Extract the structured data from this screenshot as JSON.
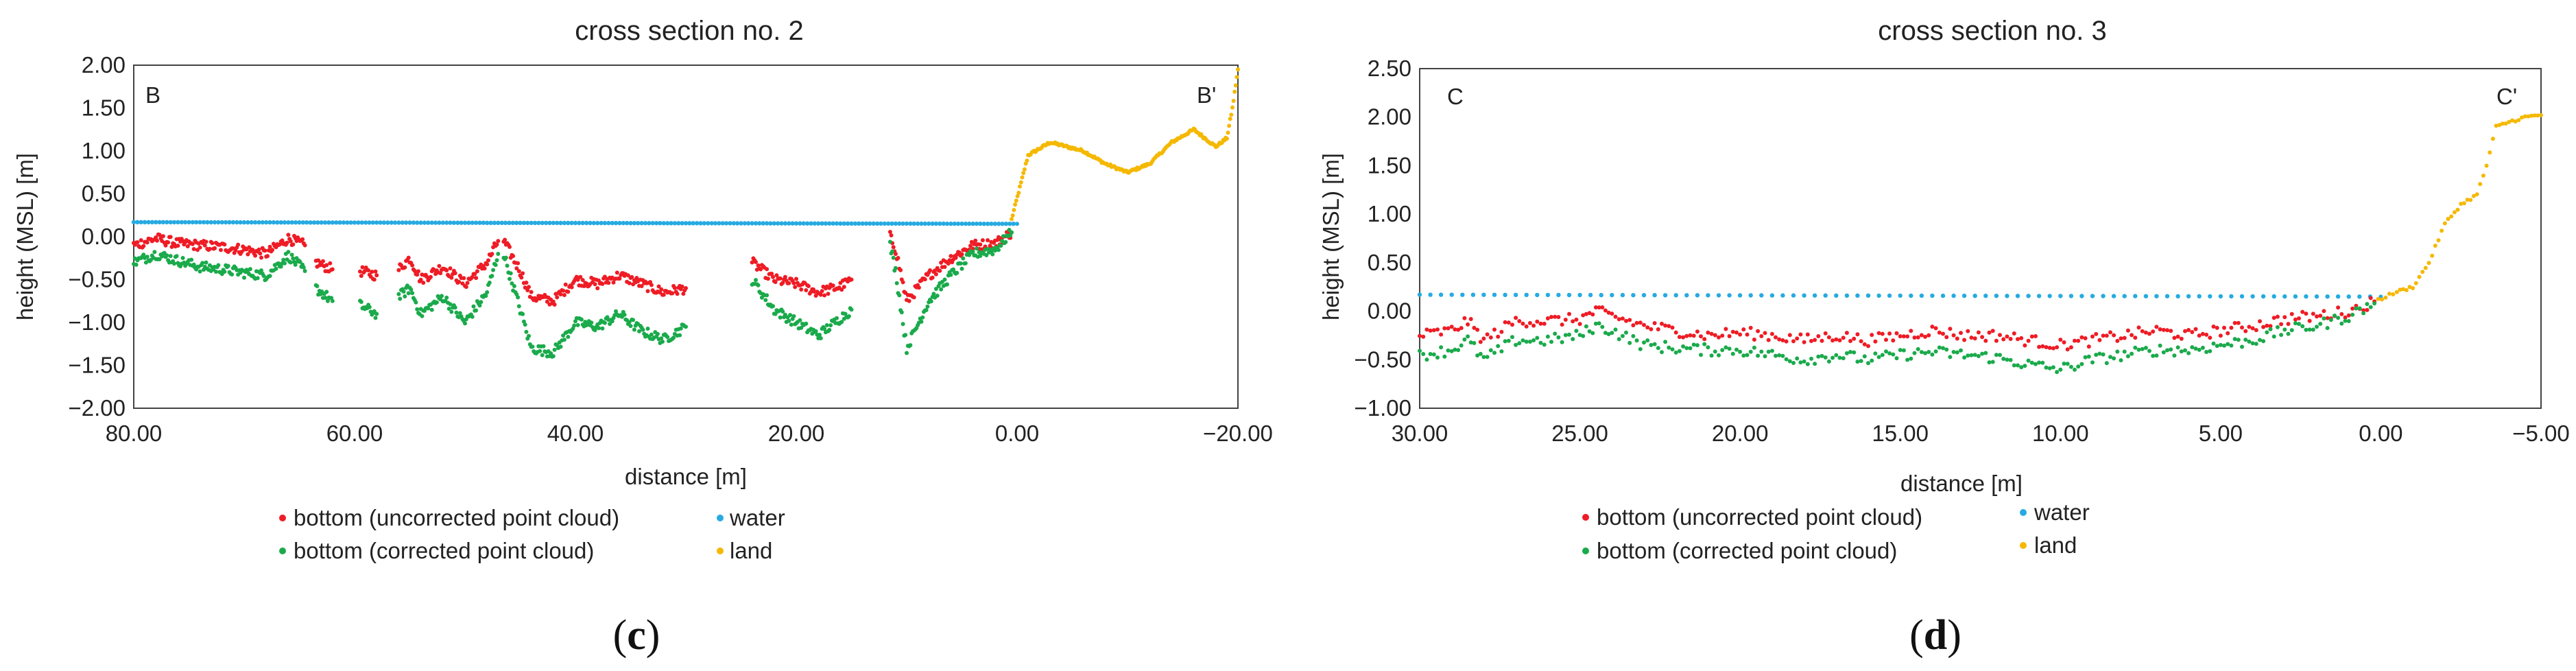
{
  "colors": {
    "uncorrected": "#ee1c25",
    "corrected": "#1aaa4b",
    "water": "#27aae1",
    "land": "#f5b800",
    "axis": "#444444"
  },
  "chart_data": [
    {
      "type": "scatter",
      "title": "cross section no. 2",
      "xlabel": "distance [m]",
      "ylabel": "height (MSL) [m]",
      "xlim": [
        80,
        -20
      ],
      "ylim": [
        -2.0,
        2.0
      ],
      "x_ticks": [
        80,
        60,
        40,
        20,
        0,
        -20
      ],
      "x_tick_labels": [
        "80.00",
        "60.00",
        "40.00",
        "20.00",
        "0.00",
        "−20.00"
      ],
      "y_ticks": [
        2.0,
        1.5,
        1.0,
        0.5,
        0.0,
        -0.5,
        -1.0,
        -1.5,
        -2.0
      ],
      "y_tick_labels": [
        "2.00",
        "1.50",
        "1.00",
        "0.50",
        "0.00",
        "−0.50",
        "−1.00",
        "−1.50",
        "−2.00"
      ],
      "corner_left": "B",
      "corner_right": "B'",
      "caption_open": "(",
      "caption_letter": "c",
      "caption_close": ")",
      "series": [
        {
          "name": "bottom (uncorrected point cloud)",
          "key": "uncorrected",
          "segments": [
            [
              [
                80,
                -0.1
              ],
              [
                78,
                -0.02
              ],
              [
                76,
                -0.08
              ],
              [
                74,
                -0.1
              ],
              [
                72,
                -0.12
              ],
              [
                70,
                -0.15
              ],
              [
                68,
                -0.2
              ],
              [
                66,
                -0.02
              ],
              [
                64.5,
                -0.1
              ]
            ],
            [
              [
                63.5,
                -0.3
              ],
              [
                62,
                -0.38
              ]
            ],
            [
              [
                59.5,
                -0.4
              ],
              [
                58,
                -0.45
              ]
            ],
            [
              [
                56,
                -0.38
              ],
              [
                55,
                -0.25
              ],
              [
                54,
                -0.5
              ],
              [
                52,
                -0.35
              ],
              [
                50,
                -0.55
              ],
              [
                48,
                -0.3
              ],
              [
                47,
                -0.05
              ]
            ],
            [
              [
                46.5,
                -0.05
              ],
              [
                45,
                -0.4
              ],
              [
                44,
                -0.7
              ],
              [
                42,
                -0.75
              ],
              [
                40,
                -0.5
              ],
              [
                38,
                -0.55
              ],
              [
                36,
                -0.45
              ],
              [
                34,
                -0.55
              ],
              [
                32,
                -0.65
              ],
              [
                30,
                -0.6
              ]
            ],
            [
              [
                24,
                -0.3
              ],
              [
                22,
                -0.5
              ],
              [
                20,
                -0.55
              ],
              [
                18,
                -0.65
              ],
              [
                16,
                -0.58
              ],
              [
                15,
                -0.5
              ]
            ],
            [
              [
                11.5,
                0.0
              ],
              [
                11,
                -0.15
              ],
              [
                10,
                -0.75
              ],
              [
                8,
                -0.45
              ],
              [
                6,
                -0.25
              ],
              [
                4,
                -0.1
              ],
              [
                2,
                -0.08
              ],
              [
                0.5,
                0.05
              ]
            ]
          ]
        },
        {
          "name": "bottom (corrected point cloud)",
          "key": "corrected",
          "segments": [
            [
              [
                80,
                -0.3
              ],
              [
                78,
                -0.2
              ],
              [
                76,
                -0.28
              ],
              [
                74,
                -0.35
              ],
              [
                72,
                -0.38
              ],
              [
                70,
                -0.42
              ],
              [
                68,
                -0.45
              ],
              [
                66,
                -0.22
              ],
              [
                64.5,
                -0.4
              ]
            ],
            [
              [
                63.5,
                -0.6
              ],
              [
                62,
                -0.75
              ]
            ],
            [
              [
                59.5,
                -0.8
              ],
              [
                58,
                -0.9
              ]
            ],
            [
              [
                56,
                -0.7
              ],
              [
                55,
                -0.6
              ],
              [
                54,
                -0.9
              ],
              [
                52,
                -0.7
              ],
              [
                50,
                -1.0
              ],
              [
                48,
                -0.65
              ],
              [
                47,
                -0.2
              ]
            ],
            [
              [
                46.5,
                -0.2
              ],
              [
                45,
                -0.85
              ],
              [
                44,
                -1.3
              ],
              [
                42,
                -1.35
              ],
              [
                40,
                -1.0
              ],
              [
                38,
                -1.05
              ],
              [
                36,
                -0.9
              ],
              [
                34,
                -1.1
              ],
              [
                32,
                -1.2
              ],
              [
                30,
                -1.05
              ]
            ],
            [
              [
                24,
                -0.5
              ],
              [
                22,
                -0.85
              ],
              [
                20,
                -1.0
              ],
              [
                18,
                -1.15
              ],
              [
                16,
                -0.95
              ],
              [
                15,
                -0.85
              ]
            ],
            [
              [
                11.5,
                -0.1
              ],
              [
                11,
                -0.4
              ],
              [
                10,
                -1.3
              ],
              [
                8,
                -0.75
              ],
              [
                6,
                -0.45
              ],
              [
                4,
                -0.2
              ],
              [
                2,
                -0.15
              ],
              [
                0.5,
                0.05
              ]
            ]
          ]
        },
        {
          "name": "water",
          "key": "water",
          "segments": [
            [
              [
                80,
                0.17
              ],
              [
                40,
                0.16
              ],
              [
                0,
                0.15
              ]
            ]
          ]
        },
        {
          "name": "land",
          "key": "land",
          "segments": [
            [
              [
                0.5,
                0.2
              ],
              [
                -1,
                0.95
              ],
              [
                -3,
                1.1
              ],
              [
                -6,
                1.0
              ],
              [
                -8,
                0.85
              ],
              [
                -10,
                0.75
              ],
              [
                -12,
                0.85
              ],
              [
                -14,
                1.1
              ],
              [
                -16,
                1.25
              ],
              [
                -17,
                1.15
              ],
              [
                -18,
                1.05
              ],
              [
                -19,
                1.15
              ],
              [
                -19.5,
                1.5
              ],
              [
                -20,
                1.95
              ]
            ]
          ]
        }
      ]
    },
    {
      "type": "scatter",
      "title": "cross section no. 3",
      "xlabel": "distance [m]",
      "ylabel": "height (MSL) [m]",
      "xlim": [
        30,
        -5
      ],
      "ylim": [
        -1.0,
        2.5
      ],
      "x_ticks": [
        30,
        25,
        20,
        15,
        10,
        5,
        0,
        -5
      ],
      "x_tick_labels": [
        "30.00",
        "25.00",
        "20.00",
        "15.00",
        "10.00",
        "5.00",
        "0.00",
        "−5.00"
      ],
      "y_ticks": [
        2.5,
        2.0,
        1.5,
        1.0,
        0.5,
        0.0,
        -0.5,
        -1.0
      ],
      "y_tick_labels": [
        "2.50",
        "2.00",
        "1.50",
        "1.00",
        "0.50",
        "0.00",
        "−0.50",
        "−1.00"
      ],
      "corner_left": "C",
      "corner_right": "C'",
      "caption_open": "(",
      "caption_letter": "d",
      "caption_close": ")",
      "series": [
        {
          "name": "bottom (uncorrected point cloud)",
          "key": "uncorrected",
          "segments": [
            [
              [
                30,
                -0.25
              ],
              [
                29,
                -0.2
              ],
              [
                28.5,
                -0.1
              ],
              [
                28,
                -0.3
              ],
              [
                27,
                -0.1
              ],
              [
                26,
                -0.1
              ],
              [
                25,
                -0.08
              ],
              [
                24.5,
                0.0
              ],
              [
                24,
                -0.05
              ],
              [
                23,
                -0.15
              ],
              [
                22,
                -0.2
              ],
              [
                21,
                -0.25
              ],
              [
                20,
                -0.22
              ],
              [
                19,
                -0.25
              ],
              [
                18,
                -0.3
              ],
              [
                17,
                -0.25
              ],
              [
                16,
                -0.3
              ],
              [
                15,
                -0.25
              ],
              [
                14,
                -0.2
              ],
              [
                13,
                -0.25
              ],
              [
                12,
                -0.25
              ],
              [
                11,
                -0.3
              ],
              [
                10,
                -0.35
              ],
              [
                9,
                -0.3
              ],
              [
                8,
                -0.25
              ],
              [
                7,
                -0.2
              ],
              [
                6,
                -0.25
              ],
              [
                5,
                -0.2
              ],
              [
                4,
                -0.15
              ],
              [
                3,
                -0.08
              ],
              [
                2,
                -0.05
              ],
              [
                1,
                0.0
              ],
              [
                0.2,
                0.1
              ]
            ]
          ]
        },
        {
          "name": "bottom (corrected point cloud)",
          "key": "corrected",
          "segments": [
            [
              [
                30,
                -0.45
              ],
              [
                29,
                -0.4
              ],
              [
                28.5,
                -0.3
              ],
              [
                28,
                -0.5
              ],
              [
                27,
                -0.3
              ],
              [
                26,
                -0.3
              ],
              [
                25,
                -0.25
              ],
              [
                24.5,
                -0.15
              ],
              [
                24,
                -0.2
              ],
              [
                23,
                -0.35
              ],
              [
                22,
                -0.38
              ],
              [
                21,
                -0.4
              ],
              [
                20,
                -0.4
              ],
              [
                19,
                -0.45
              ],
              [
                18,
                -0.5
              ],
              [
                17,
                -0.45
              ],
              [
                16,
                -0.5
              ],
              [
                15,
                -0.45
              ],
              [
                14,
                -0.42
              ],
              [
                13,
                -0.45
              ],
              [
                12,
                -0.48
              ],
              [
                11,
                -0.55
              ],
              [
                10,
                -0.6
              ],
              [
                9,
                -0.5
              ],
              [
                8,
                -0.45
              ],
              [
                7,
                -0.4
              ],
              [
                6,
                -0.4
              ],
              [
                5,
                -0.35
              ],
              [
                4,
                -0.3
              ],
              [
                3,
                -0.2
              ],
              [
                2,
                -0.15
              ],
              [
                1,
                -0.05
              ],
              [
                0.2,
                0.08
              ]
            ]
          ]
        },
        {
          "name": "water",
          "key": "water",
          "segments": [
            [
              [
                30,
                0.17
              ],
              [
                15,
                0.16
              ],
              [
                0,
                0.15
              ]
            ]
          ]
        },
        {
          "name": "land",
          "key": "land",
          "segments": [
            [
              [
                0.2,
                0.1
              ],
              [
                -0.5,
                0.2
              ],
              [
                -1,
                0.25
              ],
              [
                -1.5,
                0.5
              ],
              [
                -2,
                0.9
              ],
              [
                -2.5,
                1.1
              ],
              [
                -3,
                1.2
              ],
              [
                -3.3,
                1.5
              ],
              [
                -3.6,
                1.9
              ],
              [
                -4,
                1.95
              ],
              [
                -4.5,
                2.0
              ],
              [
                -5,
                2.02
              ]
            ]
          ]
        }
      ]
    }
  ]
}
